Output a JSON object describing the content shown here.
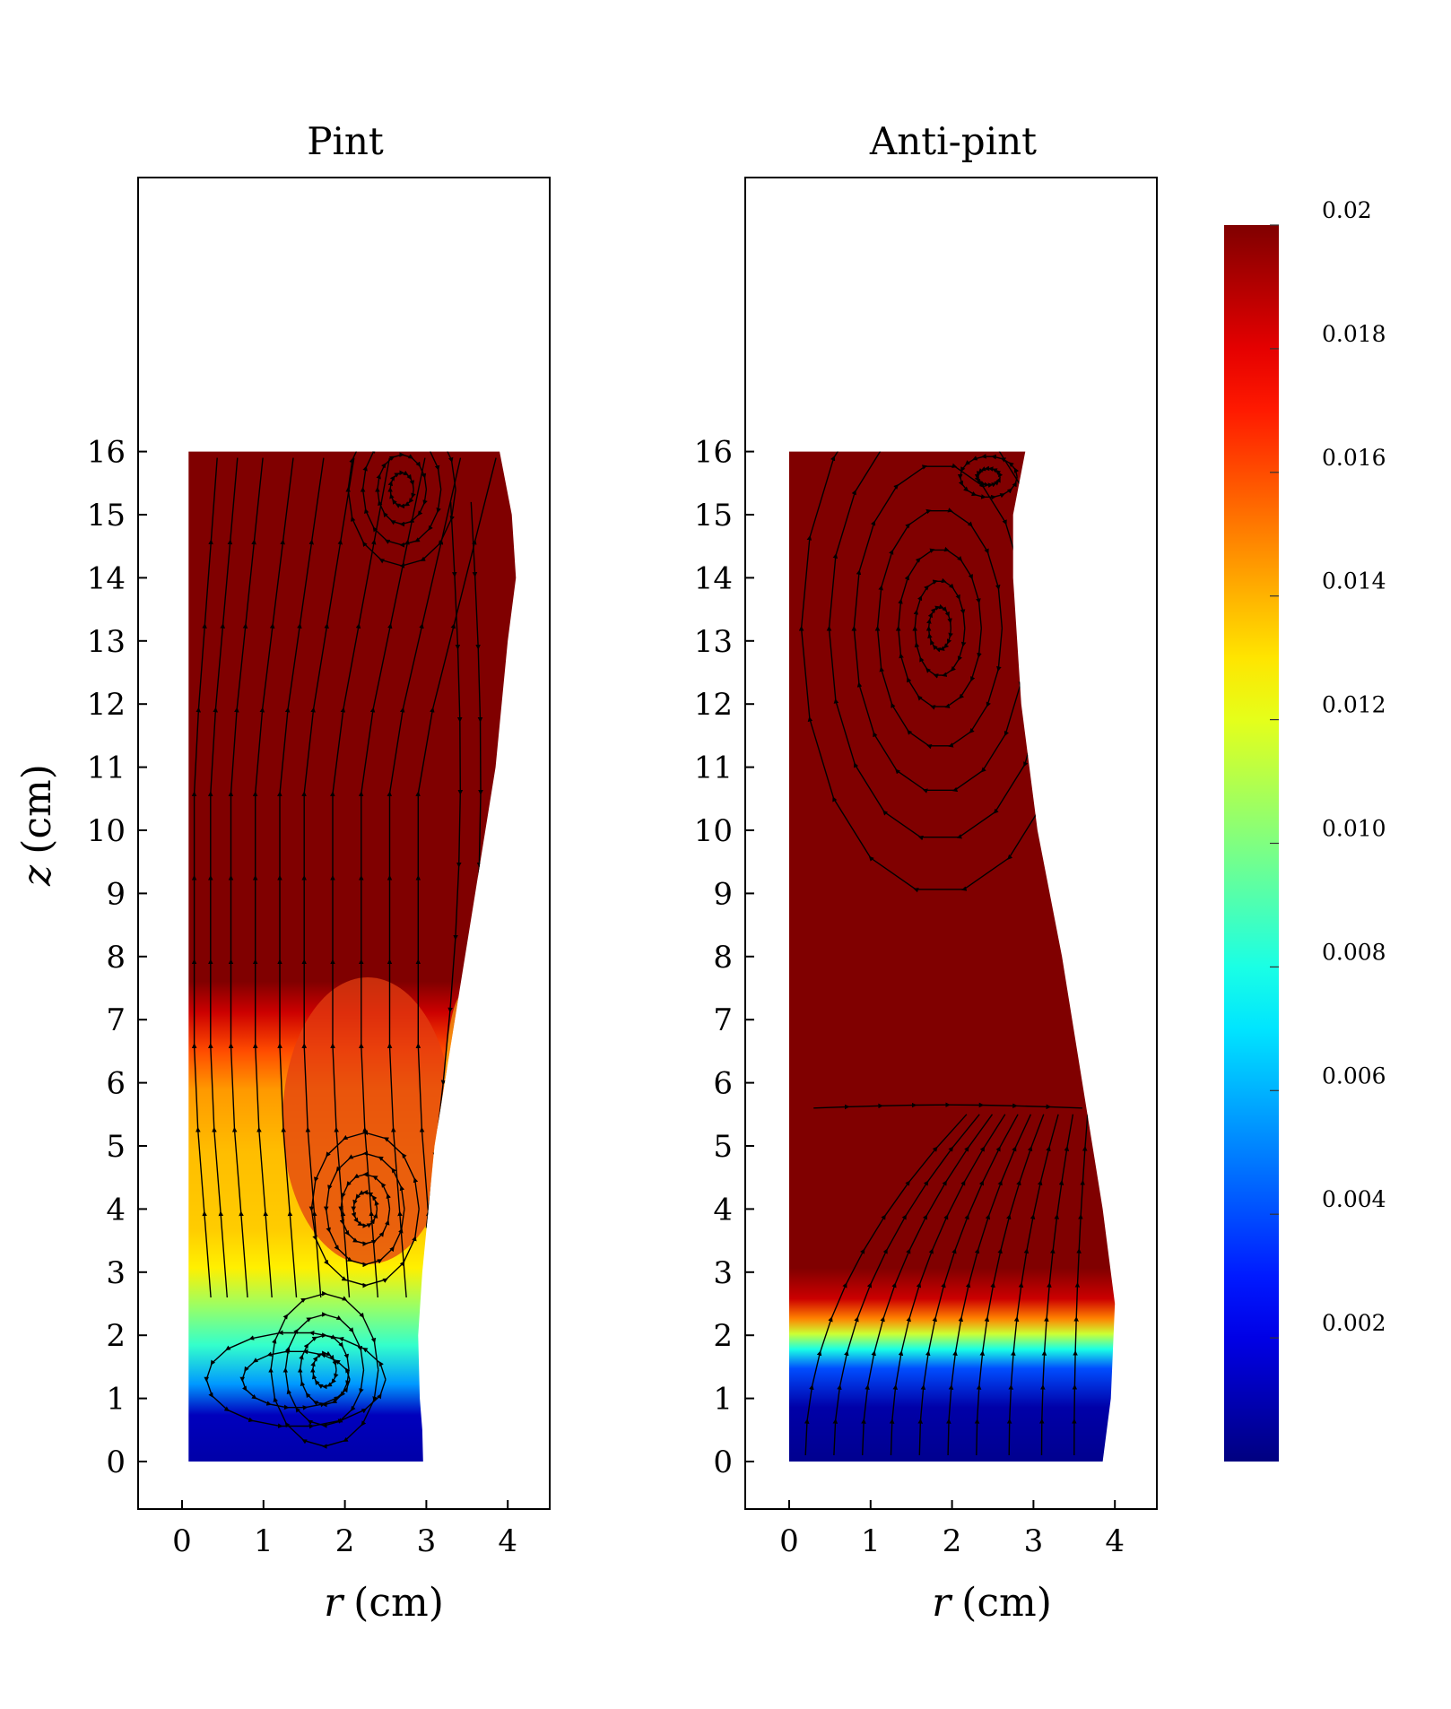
{
  "chart_data": [
    {
      "type": "heatmap",
      "title": "Pint",
      "xlabel_var": "r",
      "xlabel_unit": "(cm)",
      "ylabel_var": "z",
      "ylabel_unit": "(cm)",
      "xlim": [
        -0.5,
        4.55
      ],
      "ylim": [
        -0.6,
        16.6
      ],
      "xticks": [
        0,
        1,
        2,
        3,
        4
      ],
      "yticks": [
        0,
        1,
        2,
        3,
        4,
        5,
        6,
        7,
        8,
        9,
        10,
        11,
        12,
        13,
        14,
        15,
        16
      ],
      "grid": false,
      "domain_boundary": [
        [
          0.08,
          16.0
        ],
        [
          3.9,
          16.0
        ],
        [
          4.05,
          15.0
        ],
        [
          4.1,
          14.0
        ],
        [
          4.0,
          13.0
        ],
        [
          3.85,
          11.0
        ],
        [
          3.6,
          9.0
        ],
        [
          3.35,
          7.0
        ],
        [
          3.1,
          5.0
        ],
        [
          2.95,
          3.0
        ],
        [
          2.9,
          2.0
        ],
        [
          2.92,
          1.0
        ],
        [
          2.95,
          0.5
        ],
        [
          2.96,
          0.0
        ],
        [
          0.08,
          0.0
        ]
      ],
      "field_profile_z": [
        [
          0,
          0.0008
        ],
        [
          0.6,
          0.0012
        ],
        [
          1.0,
          0.0055
        ],
        [
          1.5,
          0.0085
        ],
        [
          2.0,
          0.0105
        ],
        [
          2.5,
          0.0128
        ],
        [
          3.0,
          0.0135
        ],
        [
          4.0,
          0.0138
        ],
        [
          4.8,
          0.0145
        ],
        [
          5.3,
          0.016
        ],
        [
          5.8,
          0.0185
        ],
        [
          6.2,
          0.02
        ],
        [
          16,
          0.02
        ]
      ],
      "vortices": [
        {
          "r": 2.25,
          "z": 4.0,
          "sense": "ccw"
        },
        {
          "r": 1.75,
          "z": 1.45,
          "sense": "cw"
        },
        {
          "r": 2.7,
          "z": 15.4,
          "sense": "cw"
        }
      ]
    },
    {
      "type": "heatmap",
      "title": "Anti-pint",
      "xlabel_var": "r",
      "xlabel_unit": "(cm)",
      "xlim": [
        -0.5,
        4.55
      ],
      "ylim": [
        -0.6,
        16.6
      ],
      "xticks": [
        0,
        1,
        2,
        3,
        4
      ],
      "yticks": [
        0,
        1,
        2,
        3,
        4,
        5,
        6,
        7,
        8,
        9,
        10,
        11,
        12,
        13,
        14,
        15,
        16
      ],
      "grid": false,
      "domain_boundary": [
        [
          0.0,
          16.0
        ],
        [
          2.9,
          16.0
        ],
        [
          2.75,
          15.0
        ],
        [
          2.75,
          14.0
        ],
        [
          2.85,
          12.0
        ],
        [
          3.05,
          10.0
        ],
        [
          3.35,
          8.0
        ],
        [
          3.6,
          6.0
        ],
        [
          3.85,
          4.0
        ],
        [
          4.0,
          2.5
        ],
        [
          3.95,
          1.0
        ],
        [
          3.85,
          0.0
        ],
        [
          0.0,
          0.0
        ]
      ],
      "field_profile_z": [
        [
          0,
          0.0003
        ],
        [
          0.7,
          0.0008
        ],
        [
          1.2,
          0.004
        ],
        [
          1.45,
          0.008
        ],
        [
          1.65,
          0.0115
        ],
        [
          1.85,
          0.015
        ],
        [
          2.1,
          0.0185
        ],
        [
          2.5,
          0.02
        ],
        [
          16,
          0.02
        ]
      ],
      "vortices": [
        {
          "r": 1.85,
          "z": 13.2,
          "sense": "cw"
        },
        {
          "r": 2.45,
          "z": 15.6,
          "sense": "ccw"
        }
      ]
    }
  ],
  "colorbar": {
    "min": 0.0,
    "max": 0.02,
    "ticks": [
      0.02,
      0.018,
      0.016,
      0.014,
      0.012,
      0.01,
      0.008,
      0.006,
      0.004,
      0.002
    ],
    "tick_labels": [
      "0.02",
      "0.018",
      "0.016",
      "0.014",
      "0.012",
      "0.010",
      "0.008",
      "0.006",
      "0.004",
      "0.002"
    ],
    "colormap": "jet"
  }
}
